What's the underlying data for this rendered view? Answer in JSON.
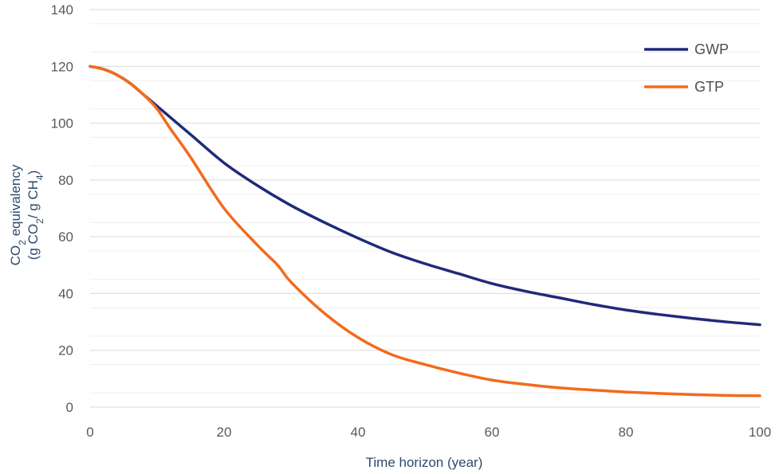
{
  "chart_data": {
    "type": "line",
    "title": "",
    "xlabel": "Time horizon (year)",
    "ylabel_line1": "CO",
    "ylabel_line1_sub": "2",
    "ylabel_line1_rest": " equivalency",
    "ylabel_line2_a": "(g CO",
    "ylabel_line2_sub1": "2",
    "ylabel_line2_b": "/ g CH",
    "ylabel_line2_sub2": "4",
    "ylabel_line2_c": ")",
    "xlim": [
      0,
      100
    ],
    "ylim": [
      0,
      140
    ],
    "xticks": [
      0,
      20,
      40,
      60,
      80,
      100
    ],
    "yticks": [
      0,
      20,
      40,
      60,
      80,
      100,
      120,
      140
    ],
    "grid": true,
    "legend_position": "top-right",
    "series": [
      {
        "name": "GWP",
        "color": "#1f2a7a",
        "x": [
          0,
          2,
          4,
          6,
          8,
          10,
          15,
          20,
          25,
          30,
          35,
          40,
          45,
          50,
          55,
          60,
          65,
          70,
          75,
          80,
          85,
          90,
          95,
          100
        ],
        "y": [
          120,
          119,
          117,
          114,
          110,
          106,
          96,
          86,
          78,
          71,
          65,
          59.5,
          54.5,
          50.5,
          47,
          43.5,
          40.8,
          38.5,
          36.2,
          34.2,
          32.6,
          31.2,
          30,
          29
        ]
      },
      {
        "name": "GTP",
        "color": "#f26b1d",
        "x": [
          0,
          2,
          4,
          6,
          8,
          10,
          12,
          15,
          20,
          25,
          28,
          30,
          35,
          40,
          45,
          50,
          55,
          60,
          65,
          70,
          75,
          80,
          85,
          90,
          95,
          100
        ],
        "y": [
          120,
          119,
          117,
          114,
          110,
          105,
          98,
          88,
          70,
          57,
          50,
          44,
          33,
          24.5,
          18.5,
          15,
          12,
          9.5,
          8,
          6.8,
          6,
          5.3,
          4.8,
          4.4,
          4.1,
          4
        ]
      }
    ]
  }
}
